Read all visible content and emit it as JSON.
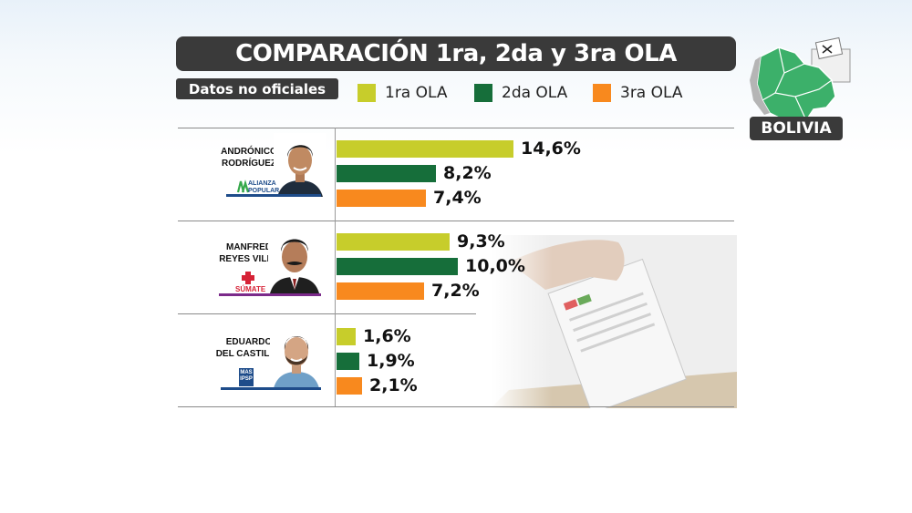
{
  "header": {
    "title": "COMPARACIÓN 1ra, 2da y 3ra OLA",
    "subtitle": "Datos no oficiales",
    "country": "BOLIVIA"
  },
  "legend": [
    {
      "label": "1ra OLA",
      "color": "#c7cd2b"
    },
    {
      "label": "2da OLA",
      "color": "#166e3a"
    },
    {
      "label": "3ra OLA",
      "color": "#f8891e"
    }
  ],
  "candidates": [
    {
      "name_line1": "ANDRÓNICO",
      "name_line2": "RODRÍGUEZ",
      "party_line1": "ALIANZA",
      "party_line2": "POPULAR"
    },
    {
      "name_line1": "MANFRED",
      "name_line2": "REYES VILLA",
      "party_line1": "SÚMATE"
    },
    {
      "name_line1": "EDUARDO",
      "name_line2": "DEL CASTILLO",
      "party_line1": "MAS",
      "party_line2": "IPSP"
    }
  ],
  "chart_data": {
    "type": "bar",
    "orientation": "horizontal",
    "title": "COMPARACIÓN 1ra, 2da y 3ra OLA",
    "subtitle": "Datos no oficiales",
    "categories": [
      "ANDRÓNICO RODRÍGUEZ",
      "MANFRED REYES VILLA",
      "EDUARDO DEL CASTILLO"
    ],
    "series": [
      {
        "name": "1ra OLA",
        "color": "#c7cd2b",
        "values": [
          14.6,
          9.3,
          1.6
        ],
        "labels": [
          "14,6%",
          "9,3%",
          "1,6%"
        ]
      },
      {
        "name": "2da OLA",
        "color": "#166e3a",
        "values": [
          8.2,
          10.0,
          1.9
        ],
        "labels": [
          "8,2%",
          "10,0%",
          "1,9%"
        ]
      },
      {
        "name": "3ra OLA",
        "color": "#f8891e",
        "values": [
          7.4,
          7.2,
          2.1
        ],
        "labels": [
          "7,4%",
          "7,2%",
          "2,1%"
        ]
      }
    ],
    "unit": "%",
    "legend_position": "top",
    "grid": false
  }
}
